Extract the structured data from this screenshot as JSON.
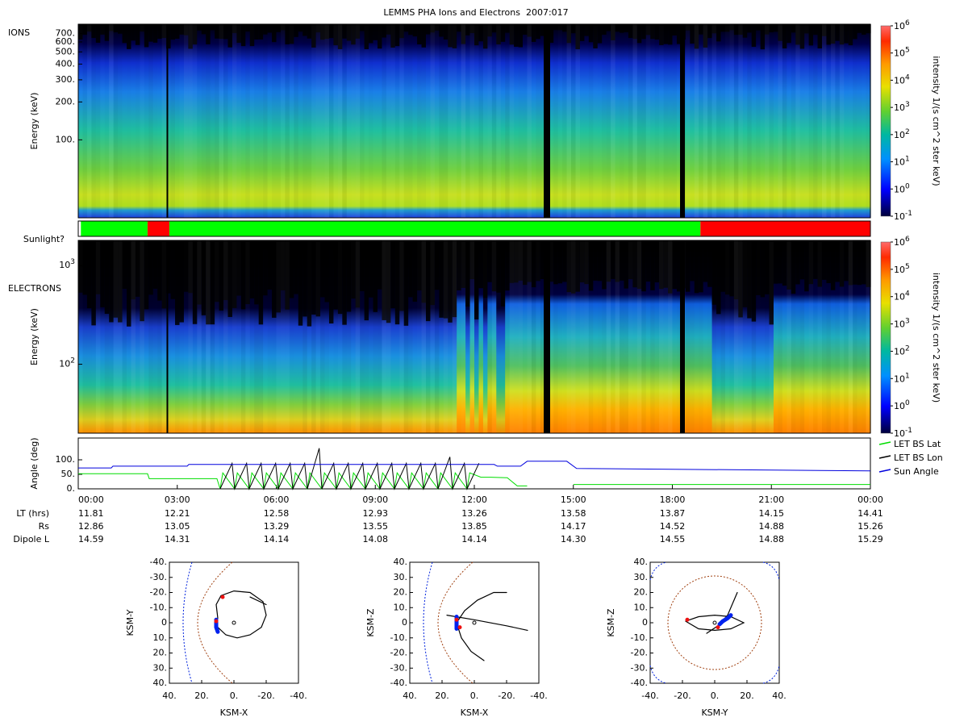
{
  "title": "LEMMS PHA Ions and Electrons  2007:017",
  "chart_data": [
    {
      "type": "spectrogram",
      "panel_label": "IONS",
      "ylabel": "Energy (keV)",
      "ylog": true,
      "ylim": [
        24,
        830
      ],
      "yticks": [
        {
          "value": 700,
          "label": "700."
        },
        {
          "value": 600,
          "label": "600."
        },
        {
          "value": 500,
          "label": "500."
        },
        {
          "value": 400,
          "label": "400."
        },
        {
          "value": 300,
          "label": "300."
        },
        {
          "value": 200,
          "label": "200."
        },
        {
          "value": 100,
          "label": "100."
        }
      ],
      "colorbar": {
        "label": "intensity 1/(s cm^2 ster keV)",
        "log": true,
        "lim": [
          0.1,
          1000000
        ],
        "ticks": [
          {
            "value": 0.1,
            "label": "10",
            "exponent": "-1"
          },
          {
            "value": 1,
            "label": "10",
            "exponent": "0"
          },
          {
            "value": 10,
            "label": "10",
            "exponent": "1"
          },
          {
            "value": 100,
            "label": "10",
            "exponent": "2"
          },
          {
            "value": 1000,
            "label": "10",
            "exponent": "3"
          },
          {
            "value": 10000,
            "label": "10",
            "exponent": "4"
          },
          {
            "value": 100000,
            "label": "10",
            "exponent": "5"
          },
          {
            "value": 1000000,
            "label": "10",
            "exponent": "6"
          }
        ]
      }
    },
    {
      "type": "state-bar",
      "label": "Sunlight?",
      "xlim": [
        0,
        24
      ],
      "segments": [
        {
          "start": 0,
          "end": 0.08,
          "color": "#ffffff"
        },
        {
          "start": 0.08,
          "end": 2.1,
          "color": "#00ff00"
        },
        {
          "start": 2.1,
          "end": 2.76,
          "color": "#ff0000"
        },
        {
          "start": 2.76,
          "end": 18.85,
          "color": "#00ff00"
        },
        {
          "start": 18.85,
          "end": 24,
          "color": "#ff0000"
        }
      ]
    },
    {
      "type": "spectrogram",
      "panel_label": "ELECTRONS",
      "ylabel": "Energy (keV)",
      "ylog": true,
      "ylim": [
        20,
        1800
      ],
      "yticks": [
        {
          "value": 1000,
          "label": "10",
          "exponent": "3"
        },
        {
          "value": 100,
          "label": "10",
          "exponent": "2"
        }
      ],
      "colorbar": {
        "label": "intensity 1/(s cm^2 ster keV)",
        "log": true,
        "lim": [
          0.1,
          1000000
        ],
        "ticks": [
          {
            "value": 0.1,
            "label": "10",
            "exponent": "-1"
          },
          {
            "value": 1,
            "label": "10",
            "exponent": "0"
          },
          {
            "value": 10,
            "label": "10",
            "exponent": "1"
          },
          {
            "value": 100,
            "label": "10",
            "exponent": "2"
          },
          {
            "value": 1000,
            "label": "10",
            "exponent": "3"
          },
          {
            "value": 10000,
            "label": "10",
            "exponent": "4"
          },
          {
            "value": 100000,
            "label": "10",
            "exponent": "5"
          },
          {
            "value": 1000000,
            "label": "10",
            "exponent": "6"
          }
        ]
      }
    },
    {
      "type": "line",
      "ylabel": "Angle (deg)",
      "xlim": [
        0,
        24
      ],
      "ylim": [
        0,
        175
      ],
      "legend": "right",
      "yticks": [
        {
          "value": 0,
          "label": "0."
        },
        {
          "value": 50,
          "label": "50."
        },
        {
          "value": 100,
          "label": "100."
        }
      ],
      "xticks": [
        {
          "value": 0,
          "label": "00:00"
        },
        {
          "value": 3,
          "label": "03:00"
        },
        {
          "value": 6,
          "label": "06:00"
        },
        {
          "value": 9,
          "label": "09:00"
        },
        {
          "value": 12,
          "label": "12:00"
        },
        {
          "value": 15,
          "label": "15:00"
        },
        {
          "value": 18,
          "label": "18:00"
        },
        {
          "value": 21,
          "label": "21:00"
        },
        {
          "value": 24,
          "label": "00:00"
        }
      ],
      "series": [
        {
          "name": "LET BS Lat",
          "color": "#00dd00",
          "x": [
            0,
            2.1,
            2.15,
            4.2,
            4.3,
            4.38,
            4.74,
            4.82,
            5.18,
            5.26,
            5.62,
            5.7,
            6.06,
            6.14,
            6.5,
            6.58,
            6.94,
            7.02,
            7.38,
            7.46,
            7.82,
            7.9,
            8.26,
            8.34,
            8.7,
            8.78,
            9.14,
            9.22,
            9.58,
            9.66,
            10.02,
            10.1,
            10.46,
            10.54,
            10.9,
            10.98,
            11.34,
            11.42,
            11.78,
            11.86,
            12.2,
            12.5,
            13.0,
            13.3,
            13.6,
            14.0,
            15.0,
            24
          ],
          "values": [
            52,
            52,
            35,
            35,
            0,
            55,
            0,
            55,
            0,
            55,
            0,
            55,
            0,
            55,
            0,
            55,
            0,
            55,
            0,
            55,
            0,
            55,
            0,
            55,
            0,
            55,
            0,
            55,
            0,
            55,
            0,
            55,
            0,
            55,
            0,
            55,
            0,
            55,
            0,
            55,
            40,
            40,
            38,
            10,
            10,
            null,
            15,
            15
          ]
        },
        {
          "name": "LET BS Lon",
          "color": "#000000",
          "x": [
            4.3,
            4.66,
            4.74,
            5.1,
            5.18,
            5.54,
            5.62,
            5.98,
            6.06,
            6.42,
            6.5,
            6.86,
            6.94,
            7.3,
            7.38,
            7.74,
            7.82,
            8.18,
            8.26,
            8.62,
            8.7,
            9.06,
            9.14,
            9.5,
            9.58,
            9.94,
            10.02,
            10.38,
            10.46,
            10.82,
            10.9,
            11.26,
            11.34,
            11.7,
            11.78,
            12.14
          ],
          "values": [
            0,
            88,
            0,
            88,
            0,
            88,
            0,
            88,
            0,
            88,
            0,
            88,
            0,
            140,
            0,
            88,
            0,
            88,
            0,
            88,
            0,
            88,
            0,
            88,
            0,
            88,
            0,
            88,
            0,
            88,
            0,
            110,
            0,
            88,
            0,
            88
          ]
        },
        {
          "name": "Sun Angle",
          "color": "#0000dd",
          "x": [
            0,
            1.0,
            1.05,
            3.3,
            3.35,
            12.6,
            12.7,
            13.4,
            13.6,
            14.8,
            15.1,
            24
          ],
          "values": [
            72,
            72,
            78,
            78,
            84,
            84,
            78,
            78,
            95,
            95,
            70,
            62
          ]
        }
      ]
    },
    {
      "type": "orbit",
      "xlabel": "KSM-X",
      "ylabel": "KSM-Y",
      "xlim": [
        40,
        -40
      ],
      "ylim": [
        40,
        -40
      ],
      "xticks": [
        {
          "value": 40,
          "label": "40."
        },
        {
          "value": 20,
          "label": "20."
        },
        {
          "value": 0,
          "label": "0."
        },
        {
          "value": -20,
          "label": "-20."
        },
        {
          "value": -40,
          "label": "-40."
        }
      ],
      "yticks": [
        {
          "value": -40,
          "label": "-40."
        },
        {
          "value": -30,
          "label": "-30."
        },
        {
          "value": -20,
          "label": "-20."
        },
        {
          "value": -10,
          "label": "-10."
        },
        0,
        {
          "value": 10,
          "label": "10."
        },
        {
          "value": 20,
          "label": "20."
        },
        {
          "value": 30,
          "label": "30."
        },
        {
          "value": 40,
          "label": "40."
        }
      ],
      "trace": {
        "x": [
          10,
          11,
          8,
          0,
          -10,
          -18,
          -20,
          -17,
          -10,
          -2,
          5,
          10,
          null,
          -10,
          -20
        ],
        "values": [
          -3,
          -12,
          -18,
          -21,
          -20,
          -14,
          -5,
          3,
          8,
          10,
          8,
          3,
          null,
          -17,
          -12
        ]
      },
      "highlight": {
        "x": [
          11,
          11,
          10
        ],
        "values": [
          -2,
          3,
          6
        ]
      },
      "markers": {
        "x": [
          7,
          11
        ],
        "values": [
          -17,
          -1
        ]
      }
    },
    {
      "type": "orbit",
      "xlabel": "KSM-X",
      "ylabel": "KSM-Z",
      "xlim": [
        40,
        -40
      ],
      "ylim": [
        -40,
        40
      ],
      "xticks": [
        {
          "value": 40,
          "label": "40."
        },
        {
          "value": 20,
          "label": "20."
        },
        {
          "value": 0,
          "label": "0."
        },
        {
          "value": -20,
          "label": "-20."
        },
        {
          "value": -40,
          "label": "-40."
        }
      ],
      "yticks": [
        {
          "value": 40,
          "label": "40."
        },
        {
          "value": 30,
          "label": "30."
        },
        {
          "value": 20,
          "label": "20."
        },
        {
          "value": 10,
          "label": "10."
        },
        0,
        {
          "value": -10,
          "label": "-10."
        },
        {
          "value": -20,
          "label": "-20."
        },
        {
          "value": -30,
          "label": "-30."
        },
        {
          "value": -40,
          "label": "-40."
        }
      ],
      "trace": {
        "x": [
          17,
          0,
          -20,
          -33,
          null,
          11,
          6,
          -2,
          -12,
          -20,
          null,
          11,
          8,
          2,
          -6
        ],
        "values": [
          5,
          2,
          -2,
          -5,
          null,
          0,
          8,
          15,
          20,
          20,
          null,
          0,
          -10,
          -19,
          -25
        ]
      },
      "highlight": {
        "x": [
          11,
          11
        ],
        "values": [
          4,
          -4
        ]
      },
      "markers": {
        "x": [
          11,
          9
        ],
        "values": [
          2,
          -3
        ]
      }
    },
    {
      "type": "orbit",
      "xlabel": "KSM-Y",
      "ylabel": "KSM-Z",
      "xlim": [
        -40,
        40
      ],
      "ylim": [
        -40,
        40
      ],
      "xticks": [
        {
          "value": -40,
          "label": "-40."
        },
        {
          "value": -20,
          "label": "-20."
        },
        {
          "value": 0,
          "label": "0."
        },
        {
          "value": 20,
          "label": "20."
        },
        {
          "value": 40,
          "label": "40."
        }
      ],
      "yticks": [
        {
          "value": 40,
          "label": "40."
        },
        {
          "value": 30,
          "label": "30."
        },
        {
          "value": 20,
          "label": "20."
        },
        {
          "value": 10,
          "label": "10."
        },
        0,
        {
          "value": -10,
          "label": "-10."
        },
        {
          "value": -20,
          "label": "-20."
        },
        {
          "value": -30,
          "label": "-30."
        },
        {
          "value": -40,
          "label": "-40."
        }
      ],
      "trace": {
        "x": [
          -18,
          -10,
          0,
          10,
          18,
          10,
          0,
          -10,
          -18,
          null,
          -5,
          2,
          8,
          12,
          14
        ],
        "values": [
          1,
          4,
          5,
          4,
          0,
          -4,
          -5,
          -4,
          1,
          null,
          -7,
          -2,
          5,
          15,
          20
        ]
      },
      "highlight": {
        "x": [
          3,
          5,
          8,
          10
        ],
        "values": [
          -1,
          1,
          3,
          5
        ]
      },
      "markers": {
        "x": [
          -17,
          2
        ],
        "values": [
          2,
          -3
        ]
      }
    }
  ],
  "ephemeris": {
    "rows": [
      {
        "label": "LT (hrs)",
        "values": [
          "11.81",
          "12.21",
          "12.58",
          "12.93",
          "13.26",
          "13.58",
          "13.87",
          "14.15",
          "14.41"
        ]
      },
      {
        "label": "Rs",
        "values": [
          "12.86",
          "13.05",
          "13.29",
          "13.55",
          "13.85",
          "14.17",
          "14.52",
          "14.88",
          "15.26"
        ]
      },
      {
        "label": "Dipole L",
        "values": [
          "14.59",
          "14.31",
          "14.14",
          "14.08",
          "14.14",
          "14.30",
          "14.55",
          "14.88",
          "15.29"
        ]
      }
    ]
  }
}
